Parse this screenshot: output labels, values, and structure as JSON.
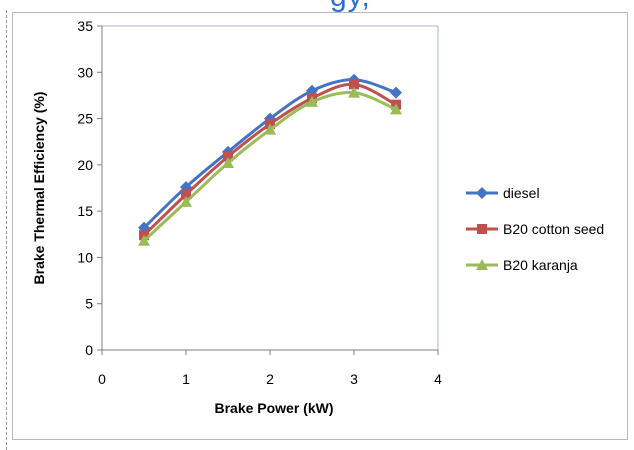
{
  "page": {
    "cut_title_fragment": "gy, ",
    "colors": {
      "background": "#ffffff",
      "plot_border": "#a6b6d0"
    }
  },
  "chart_data": {
    "type": "line",
    "title": "",
    "xlabel": "Brake Power (kW)",
    "ylabel": "Brake Thermal Efficiency (%)",
    "xlim": [
      0,
      4
    ],
    "ylim": [
      0,
      35
    ],
    "xticks": [
      0,
      1,
      2,
      3,
      4
    ],
    "yticks": [
      0,
      5,
      10,
      15,
      20,
      25,
      30,
      35
    ],
    "grid": false,
    "legend_position": "right",
    "x": [
      0.5,
      1,
      1.5,
      2,
      2.5,
      3,
      3.5
    ],
    "series": [
      {
        "name": "diesel",
        "color": "#4472c4",
        "marker": "diamond",
        "values": [
          13.2,
          17.6,
          21.4,
          25.0,
          28.0,
          29.2,
          27.8
        ]
      },
      {
        "name": "B20 cotton seed",
        "color": "#c0504d",
        "marker": "square",
        "values": [
          12.4,
          16.8,
          20.9,
          24.4,
          27.2,
          28.7,
          26.5
        ]
      },
      {
        "name": "B20 karanja",
        "color": "#9bbb59",
        "marker": "triangle",
        "values": [
          11.8,
          16.0,
          20.2,
          23.8,
          26.8,
          27.8,
          26.0
        ]
      }
    ]
  }
}
